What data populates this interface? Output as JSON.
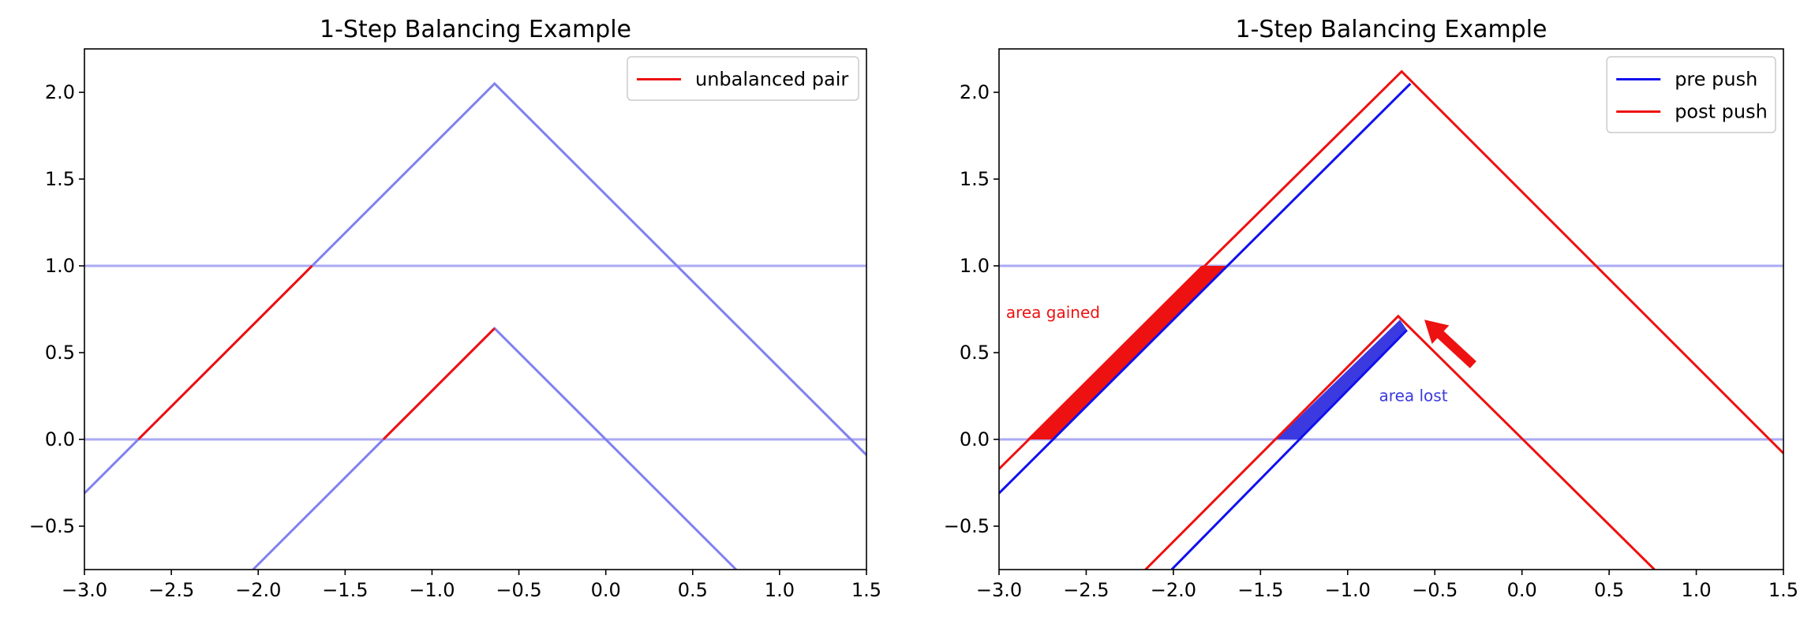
{
  "chart_data": [
    {
      "type": "line",
      "title": "1-Step Balancing Example",
      "xlabel": "",
      "ylabel": "",
      "xlim": [
        -3.0,
        1.5
      ],
      "ylim": [
        -0.75,
        2.25
      ],
      "xticks": [
        -3.0,
        -2.5,
        -2.0,
        -1.5,
        -1.0,
        -0.5,
        0.0,
        0.5,
        1.0,
        1.5
      ],
      "xtick_labels": [
        "−3.0",
        "−2.5",
        "−2.0",
        "−1.5",
        "−1.0",
        "−0.5",
        "0.0",
        "0.5",
        "1.0",
        "1.5"
      ],
      "yticks": [
        -0.5,
        0.0,
        0.5,
        1.0,
        1.5,
        2.0
      ],
      "ytick_labels": [
        "−0.5",
        "0.0",
        "0.5",
        "1.0",
        "1.5",
        "2.0"
      ],
      "grid": false,
      "legend": {
        "placement": "top-right",
        "entries": [
          {
            "label": "unbalanced pair",
            "color": "#ee1111"
          }
        ]
      },
      "hlines": [
        {
          "y": 0.0,
          "color": "#aaaaf5"
        },
        {
          "y": 1.0,
          "color": "#aaaaf5"
        }
      ],
      "series": [
        {
          "color": "#8080f0",
          "x": [
            -3.0,
            -0.64,
            1.5
          ],
          "y": [
            -0.31,
            2.05,
            -0.09
          ]
        },
        {
          "color": "#8080f0",
          "x": [
            -2.03,
            -0.64,
            0.75
          ],
          "y": [
            -0.75,
            0.64,
            -0.75
          ]
        },
        {
          "color": "#ee1111",
          "x": [
            -2.69,
            -1.69
          ],
          "y": [
            0.0,
            1.0
          ]
        },
        {
          "color": "#ee1111",
          "x": [
            -1.28,
            -0.64
          ],
          "y": [
            0.0,
            0.64
          ]
        }
      ],
      "fills": []
    },
    {
      "type": "line",
      "title": "1-Step Balancing Example",
      "xlabel": "",
      "ylabel": "",
      "xlim": [
        -3.0,
        1.5
      ],
      "ylim": [
        -0.75,
        2.25
      ],
      "xticks": [
        -3.0,
        -2.5,
        -2.0,
        -1.5,
        -1.0,
        -0.5,
        0.0,
        0.5,
        1.0,
        1.5
      ],
      "xtick_labels": [
        "−3.0",
        "−2.5",
        "−2.0",
        "−1.5",
        "−1.0",
        "−0.5",
        "0.0",
        "0.5",
        "1.0",
        "1.5"
      ],
      "yticks": [
        -0.5,
        0.0,
        0.5,
        1.0,
        1.5,
        2.0
      ],
      "ytick_labels": [
        "−0.5",
        "0.0",
        "0.5",
        "1.0",
        "1.5",
        "2.0"
      ],
      "grid": false,
      "legend": {
        "placement": "top-right",
        "entries": [
          {
            "label": "pre push",
            "color": "#1111ee"
          },
          {
            "label": "post push",
            "color": "#ee1111"
          }
        ]
      },
      "hlines": [
        {
          "y": 0.0,
          "color": "#aaaaf5"
        },
        {
          "y": 1.0,
          "color": "#aaaaf5"
        }
      ],
      "series": [
        {
          "color": "#1111ee",
          "x": [
            -3.0,
            -0.64
          ],
          "y": [
            -0.31,
            2.05
          ]
        },
        {
          "color": "#1111ee",
          "x": [
            -2.01,
            -0.66
          ],
          "y": [
            -0.75,
            0.63
          ]
        },
        {
          "color": "#ee1111",
          "x": [
            -3.0,
            -0.69,
            1.5
          ],
          "y": [
            -0.17,
            2.12,
            -0.08
          ]
        },
        {
          "color": "#ee1111",
          "x": [
            -2.16,
            -0.71,
            0.76
          ],
          "y": [
            -0.75,
            0.71,
            -0.75
          ]
        }
      ],
      "fills": [
        {
          "color": "#ee1111",
          "x": [
            -2.84,
            -2.69,
            -1.69,
            -1.84
          ],
          "y": [
            0.0,
            0.0,
            1.0,
            1.0
          ]
        },
        {
          "color": "#3a3ae0",
          "x": [
            -1.41,
            -1.28,
            -0.66,
            -0.7
          ],
          "y": [
            0.0,
            0.0,
            0.63,
            0.69
          ]
        }
      ],
      "annotations": [
        {
          "text": "area gained",
          "x": -2.96,
          "y": 0.7,
          "color": "#ee1111"
        },
        {
          "text": "area lost",
          "x": -0.82,
          "y": 0.22,
          "color": "#3a3ae0"
        }
      ],
      "arrow": {
        "from": [
          -0.28,
          0.43
        ],
        "to": [
          -0.56,
          0.69
        ],
        "color": "#ee1111"
      }
    }
  ]
}
